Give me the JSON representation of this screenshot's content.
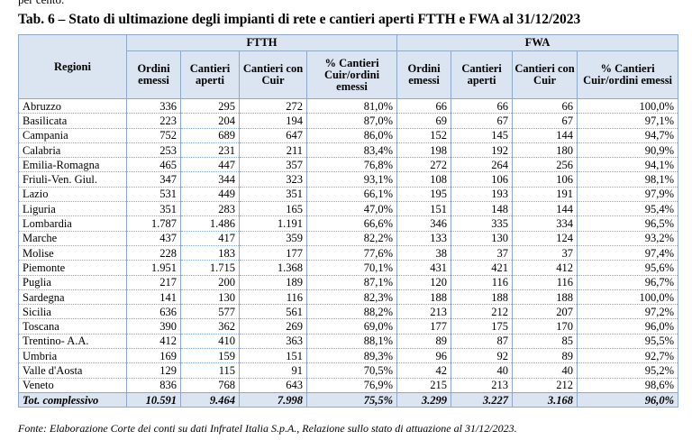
{
  "top_text": "per cento.",
  "title": "Tab. 6 – Stato di ultimazione degli impianti di rete e cantieri aperti FTTH e FWA al 31/12/2023",
  "table": {
    "region_header": "Regioni",
    "groups": [
      "FTTH",
      "FWA"
    ],
    "subheaders": [
      "Ordini emessi",
      "Cantieri aperti",
      "Cantieri con Cuir",
      "% Cantieri Cuir/ordini emessi",
      "Ordini emessi",
      "Cantieri aperti",
      "Cantieri con Cuir",
      "% Cantieri Cuir/ordini emessi"
    ],
    "rows": [
      [
        "Abruzzo",
        "336",
        "295",
        "272",
        "81,0%",
        "66",
        "66",
        "66",
        "100,0%"
      ],
      [
        "Basilicata",
        "223",
        "204",
        "194",
        "87,0%",
        "69",
        "67",
        "67",
        "97,1%"
      ],
      [
        "Campania",
        "752",
        "689",
        "647",
        "86,0%",
        "152",
        "145",
        "144",
        "94,7%"
      ],
      [
        "Calabria",
        "253",
        "231",
        "211",
        "83,4%",
        "198",
        "192",
        "180",
        "90,9%"
      ],
      [
        "Emilia-Romagna",
        "465",
        "447",
        "357",
        "76,8%",
        "272",
        "264",
        "256",
        "94,1%"
      ],
      [
        "Friuli-Ven. Giul.",
        "347",
        "344",
        "323",
        "93,1%",
        "108",
        "106",
        "106",
        "98,1%"
      ],
      [
        "Lazio",
        "531",
        "449",
        "351",
        "66,1%",
        "195",
        "193",
        "191",
        "97,9%"
      ],
      [
        "Liguria",
        "351",
        "283",
        "165",
        "47,0%",
        "151",
        "148",
        "144",
        "95,4%"
      ],
      [
        "Lombardia",
        "1.787",
        "1.486",
        "1.191",
        "66,6%",
        "346",
        "335",
        "334",
        "96,5%"
      ],
      [
        "Marche",
        "437",
        "417",
        "359",
        "82,2%",
        "133",
        "130",
        "124",
        "93,2%"
      ],
      [
        "Molise",
        "228",
        "183",
        "177",
        "77,6%",
        "38",
        "37",
        "37",
        "97,4%"
      ],
      [
        "Piemonte",
        "1.951",
        "1.715",
        "1.368",
        "70,1%",
        "431",
        "421",
        "412",
        "95,6%"
      ],
      [
        "Puglia",
        "217",
        "200",
        "189",
        "87,1%",
        "120",
        "116",
        "116",
        "96,7%"
      ],
      [
        "Sardegna",
        "141",
        "130",
        "116",
        "82,3%",
        "188",
        "188",
        "188",
        "100,0%"
      ],
      [
        "Sicilia",
        "636",
        "577",
        "561",
        "88,2%",
        "213",
        "212",
        "207",
        "97,2%"
      ],
      [
        "Toscana",
        "390",
        "362",
        "269",
        "69,0%",
        "177",
        "175",
        "170",
        "96,0%"
      ],
      [
        "Trentino- A.A.",
        "412",
        "410",
        "363",
        "88,1%",
        "89",
        "87",
        "85",
        "95,5%"
      ],
      [
        "Umbria",
        "169",
        "159",
        "151",
        "89,3%",
        "96",
        "92",
        "89",
        "92,7%"
      ],
      [
        "Valle d'Aosta",
        "129",
        "115",
        "91",
        "70,5%",
        "42",
        "40",
        "40",
        "95,2%"
      ],
      [
        "Veneto",
        "836",
        "768",
        "643",
        "76,9%",
        "215",
        "213",
        "212",
        "98,6%"
      ]
    ],
    "total": [
      "Tot. complessivo",
      "10.591",
      "9.464",
      "7.998",
      "75,5%",
      "3.299",
      "3.227",
      "3.168",
      "96,0%"
    ]
  },
  "source": "Fonte: Elaborazione Corte dei conti su dati Infratel Italia S.p.A., Relazione sullo stato di attuazione al 31/12/2023."
}
